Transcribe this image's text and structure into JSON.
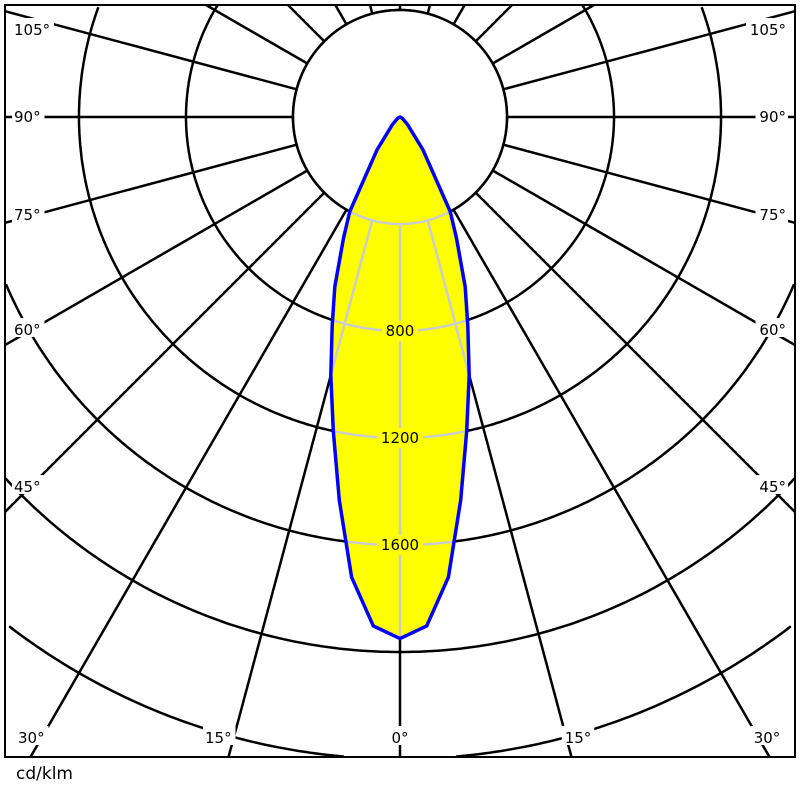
{
  "chart_data": {
    "type": "polar-line",
    "unit_label": "cd/klm",
    "angle_labels_left": [
      "105°",
      "90°",
      "75°",
      "60°",
      "45°",
      "30°",
      "15°"
    ],
    "angle_labels_bottom_center": "0°",
    "angle_labels_right": [
      "15°",
      "30°",
      "45°",
      "60°",
      "75°",
      "90°",
      "105°"
    ],
    "ring_labels": [
      "800",
      "1200",
      "1600"
    ],
    "ring_values": [
      400,
      800,
      1200,
      1600,
      2000,
      2400,
      2800,
      3200
    ],
    "angle_step_deg": 15,
    "series": [
      {
        "angles_deg": [
          0,
          3,
          6,
          9,
          12,
          15,
          18,
          21,
          25,
          28,
          35,
          45,
          60,
          90
        ],
        "values": [
          1950,
          1905,
          1730,
          1450,
          1200,
          1000,
          820,
          680,
          500,
          400,
          150,
          40,
          10,
          0
        ]
      }
    ],
    "symmetric": true,
    "colors": {
      "fill": "#ffff00",
      "outline": "#0000ff",
      "grid": "#000000",
      "grid_inside": "#cccccc"
    }
  }
}
